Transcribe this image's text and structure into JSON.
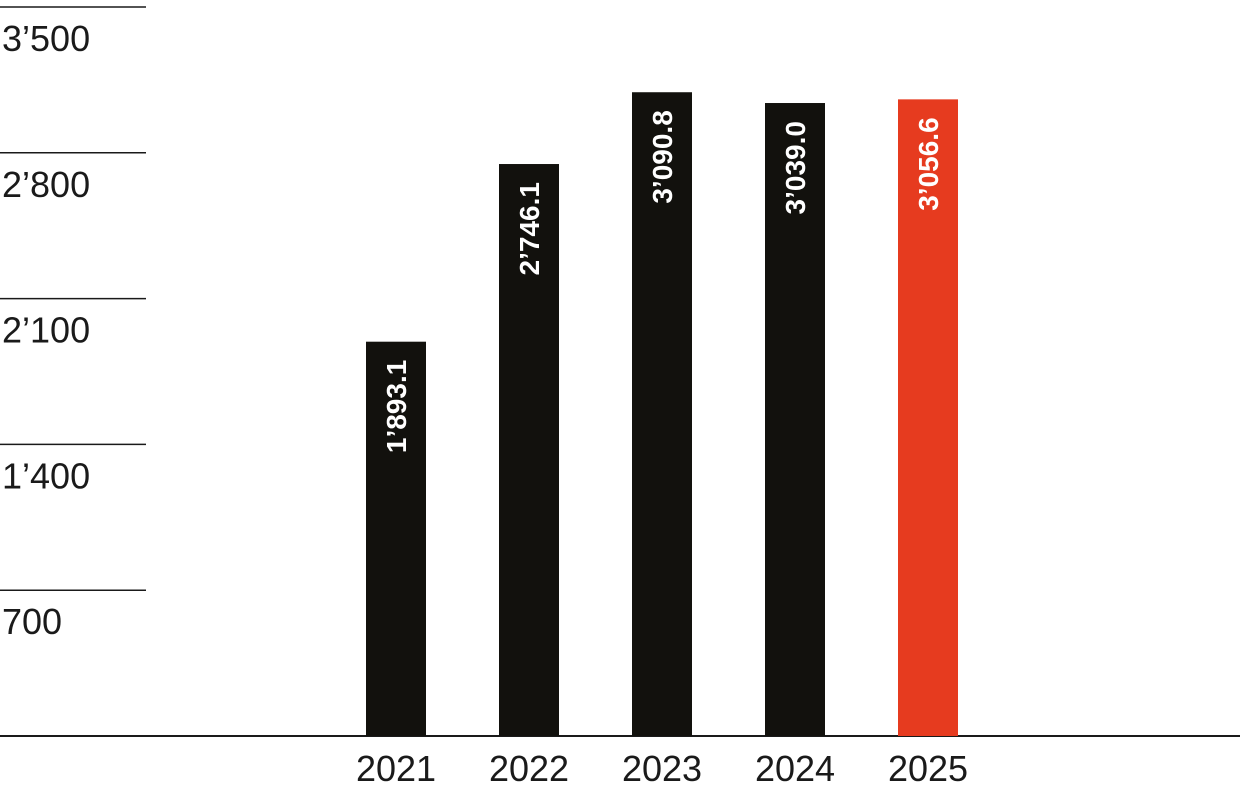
{
  "chart_data": {
    "type": "bar",
    "categories": [
      "2021",
      "2022",
      "2023",
      "2024",
      "2025"
    ],
    "values": [
      1893.1,
      2746.1,
      3090.8,
      3039.0,
      3056.6
    ],
    "value_labels": [
      "1’893.1",
      "2’746.1",
      "3’090.8",
      "3’039.0",
      "3’056.6"
    ],
    "ylim": [
      0,
      3500
    ],
    "yticks": [
      700,
      1400,
      2100,
      2800,
      3500
    ],
    "ytick_labels": [
      "700",
      "1’400",
      "2’100",
      "2’800",
      "3’500"
    ],
    "title": "",
    "xlabel": "",
    "ylabel": "",
    "grid": false,
    "legend": "none",
    "value_label_orientation": "vertical",
    "colors": {
      "bar": "#12110d",
      "highlight_bar": "#e63b1f",
      "highlight_category": "2025",
      "axis": "#1a1a1a",
      "text": "#1a1a1a",
      "value_label": "#ffffff"
    }
  }
}
